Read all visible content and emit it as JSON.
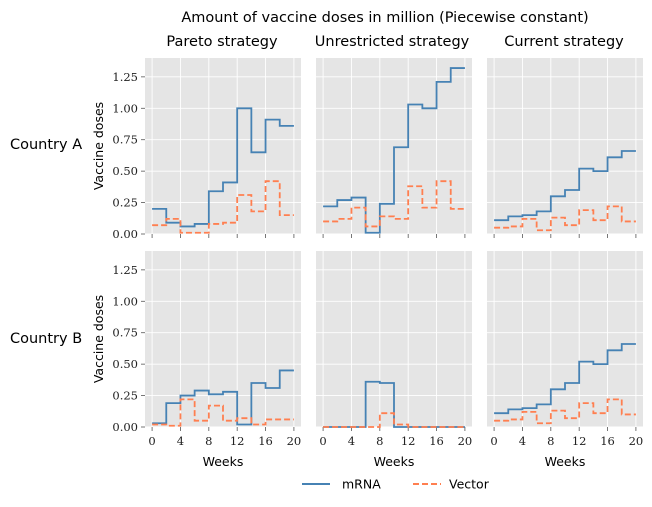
{
  "title": "Amount of vaccine doses in million (Piecewise constant)",
  "columns": [
    "Pareto strategy",
    "Unrestricted strategy",
    "Current strategy"
  ],
  "rows": [
    "Country A",
    "Country B"
  ],
  "legend": {
    "mrna": "mRNA",
    "vector": "Vector"
  },
  "colors": {
    "mrna": "#4682b4",
    "vector": "#ff7f50",
    "panel_bg": "#e5e5e5",
    "grid": "#ffffff"
  },
  "chart_data": {
    "type": "line",
    "step": "post",
    "xlabel": "Weeks",
    "ylabel": "Vaccine doses",
    "xlim": [
      -1,
      21
    ],
    "ylim": [
      0,
      1.4
    ],
    "xticks": [
      0,
      4,
      8,
      12,
      16,
      20
    ],
    "yticks": [
      0.0,
      0.25,
      0.5,
      0.75,
      1.0,
      1.25
    ],
    "x_tick_labels": [
      "0",
      "4",
      "8",
      "12",
      "16",
      "20"
    ],
    "y_tick_labels": [
      "0.00",
      "0.25",
      "0.50",
      "0.75",
      "1.00",
      "1.25"
    ],
    "x": [
      0,
      2,
      4,
      6,
      8,
      10,
      12,
      14,
      16,
      18,
      20
    ],
    "panels": [
      {
        "row": "Country A",
        "column": "Pareto strategy",
        "series": [
          {
            "name": "mRNA",
            "values": [
              0.2,
              0.09,
              0.06,
              0.08,
              0.34,
              0.41,
              1.0,
              0.65,
              0.91,
              0.86
            ]
          },
          {
            "name": "Vector",
            "values": [
              0.07,
              0.12,
              0.01,
              0.01,
              0.08,
              0.09,
              0.31,
              0.18,
              0.42,
              0.15
            ]
          }
        ]
      },
      {
        "row": "Country A",
        "column": "Unrestricted strategy",
        "series": [
          {
            "name": "mRNA",
            "values": [
              0.22,
              0.27,
              0.29,
              0.01,
              0.24,
              0.69,
              1.03,
              1.0,
              1.21,
              1.32
            ]
          },
          {
            "name": "Vector",
            "values": [
              0.1,
              0.12,
              0.21,
              0.06,
              0.14,
              0.12,
              0.38,
              0.21,
              0.42,
              0.2
            ]
          }
        ]
      },
      {
        "row": "Country A",
        "column": "Current strategy",
        "series": [
          {
            "name": "mRNA",
            "values": [
              0.11,
              0.14,
              0.15,
              0.18,
              0.3,
              0.35,
              0.52,
              0.5,
              0.61,
              0.66
            ]
          },
          {
            "name": "Vector",
            "values": [
              0.05,
              0.06,
              0.12,
              0.03,
              0.13,
              0.07,
              0.19,
              0.11,
              0.22,
              0.1
            ]
          }
        ]
      },
      {
        "row": "Country B",
        "column": "Pareto strategy",
        "series": [
          {
            "name": "mRNA",
            "values": [
              0.03,
              0.19,
              0.25,
              0.29,
              0.26,
              0.28,
              0.02,
              0.35,
              0.31,
              0.45
            ]
          },
          {
            "name": "Vector",
            "values": [
              0.02,
              0.01,
              0.22,
              0.05,
              0.17,
              0.05,
              0.07,
              0.02,
              0.06,
              0.06
            ]
          }
        ]
      },
      {
        "row": "Country B",
        "column": "Unrestricted strategy",
        "series": [
          {
            "name": "mRNA",
            "values": [
              0.0,
              0.0,
              0.0,
              0.36,
              0.35,
              0.0,
              0.0,
              0.0,
              0.0,
              0.0
            ]
          },
          {
            "name": "Vector",
            "values": [
              0.0,
              0.0,
              0.0,
              0.0,
              0.11,
              0.02,
              0.0,
              0.0,
              0.0,
              0.0
            ]
          }
        ]
      },
      {
        "row": "Country B",
        "column": "Current strategy",
        "series": [
          {
            "name": "mRNA",
            "values": [
              0.11,
              0.14,
              0.15,
              0.18,
              0.3,
              0.35,
              0.52,
              0.5,
              0.61,
              0.66
            ]
          },
          {
            "name": "Vector",
            "values": [
              0.05,
              0.06,
              0.12,
              0.03,
              0.13,
              0.07,
              0.19,
              0.11,
              0.22,
              0.1
            ]
          }
        ]
      }
    ]
  }
}
